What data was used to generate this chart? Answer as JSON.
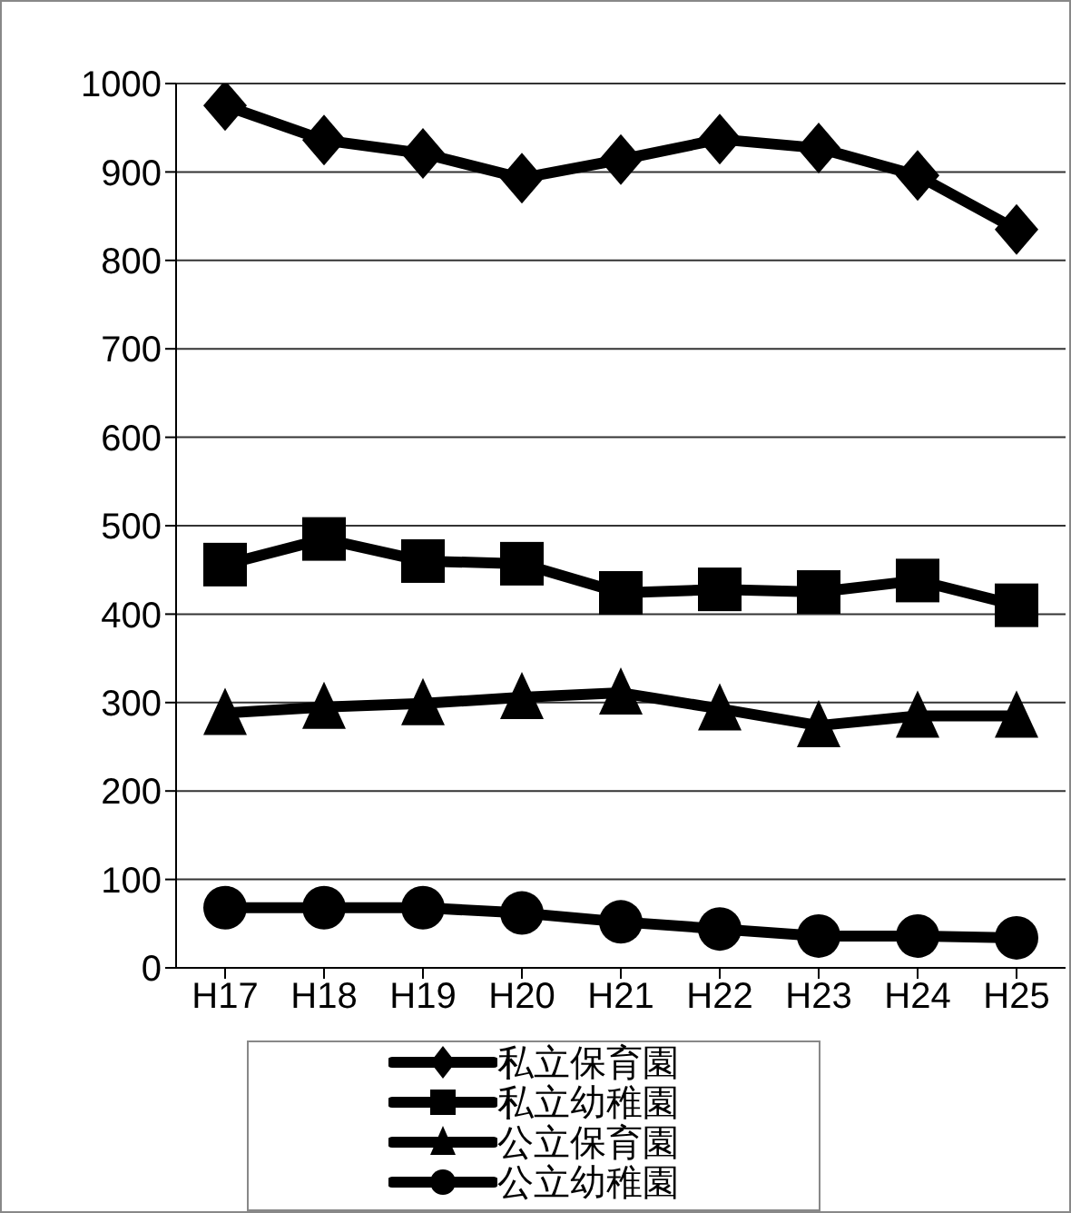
{
  "chart_data": {
    "type": "line",
    "categories": [
      "H17",
      "H18",
      "H19",
      "H20",
      "H21",
      "H22",
      "H23",
      "H24",
      "H25"
    ],
    "series": [
      {
        "name": "私立保育園",
        "color": "#000000",
        "marker": "diamond",
        "values": [
          975,
          936,
          921,
          893,
          914,
          937,
          927,
          896,
          835
        ]
      },
      {
        "name": "私立幼稚園",
        "color": "#000000",
        "marker": "square",
        "values": [
          456,
          485,
          460,
          457,
          424,
          428,
          425,
          438,
          410
        ]
      },
      {
        "name": "公立保育園",
        "color": "#000000",
        "marker": "triangle",
        "values": [
          288,
          295,
          299,
          306,
          311,
          293,
          274,
          285,
          285
        ]
      },
      {
        "name": "公立幼稚園",
        "color": "#000000",
        "marker": "circle",
        "values": [
          68,
          68,
          68,
          62,
          52,
          44,
          36,
          36,
          34
        ]
      }
    ],
    "ylim": [
      0,
      1000
    ],
    "yticks": [
      0,
      100,
      200,
      300,
      400,
      500,
      600,
      700,
      800,
      900,
      1000
    ],
    "grid": "y",
    "legend": "bottom",
    "line_style": "solid"
  }
}
